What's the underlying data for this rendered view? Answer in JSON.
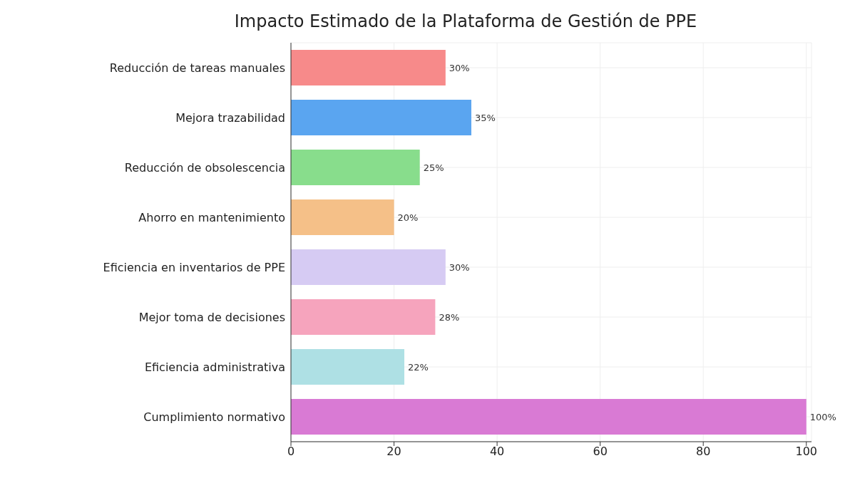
{
  "chart_data": {
    "type": "bar",
    "orientation": "horizontal",
    "title": "Impacto Estimado de la Plataforma de Gestión de PPE",
    "categories": [
      "Reducción de tareas manuales",
      "Mejora trazabilidad",
      "Reducción de obsolescencia",
      "Ahorro en mantenimiento",
      "Eficiencia en inventarios de PPE",
      "Mejor toma de decisiones",
      "Eficiencia administrativa",
      "Cumplimiento normativo"
    ],
    "values": [
      30,
      35,
      25,
      20,
      30,
      28,
      22,
      100
    ],
    "value_labels": [
      "30%",
      "35%",
      "25%",
      "20%",
      "30%",
      "28%",
      "22%",
      "100%"
    ],
    "colors": [
      "#f78a8a",
      "#5aa5f0",
      "#88dd8c",
      "#f5c088",
      "#d6cbf3",
      "#f6a4bd",
      "#aee0e4",
      "#d97ad4"
    ],
    "xlim": [
      0,
      101
    ],
    "xticks": [
      0,
      20,
      40,
      60,
      80,
      100
    ],
    "grid": true
  }
}
